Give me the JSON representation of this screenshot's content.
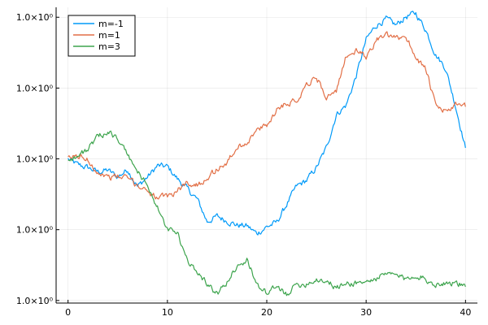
{
  "chart_data": {
    "type": "line",
    "title": "",
    "xlabel": "",
    "ylabel": "",
    "xlim": [
      -1.2,
      41.2
    ],
    "ylim": [
      -0.03,
      3.42
    ],
    "yscale": "log",
    "grid": true,
    "legend_position": "top-left",
    "x_ticks": [
      {
        "value": 0,
        "label": "0"
      },
      {
        "value": 10,
        "label": "10"
      },
      {
        "value": 20,
        "label": "20"
      },
      {
        "value": 30,
        "label": "30"
      },
      {
        "value": 40,
        "label": "40"
      }
    ],
    "y_ticks": [
      {
        "value": 0,
        "label": "1.0×10⁰"
      },
      {
        "value": 0.826,
        "label": "1.0×10⁰"
      },
      {
        "value": 1.652,
        "label": "1.0×10⁰"
      },
      {
        "value": 2.478,
        "label": "1.0×10⁰"
      },
      {
        "value": 3.304,
        "label": "1.0×10⁰"
      }
    ],
    "series": [
      {
        "name": "m=-1",
        "color": "#009AF9",
        "x": [
          0,
          1,
          2,
          3,
          4,
          5,
          6,
          7,
          8,
          9,
          10,
          11,
          12,
          13,
          14,
          15,
          16,
          17,
          18,
          19,
          20,
          21,
          22,
          23,
          24,
          25,
          26,
          27,
          28,
          29,
          30,
          31,
          32,
          33,
          34,
          35,
          36,
          37,
          38,
          39,
          40
        ],
        "y": [
          1.65,
          1.58,
          1.55,
          1.5,
          1.52,
          1.44,
          1.53,
          1.33,
          1.44,
          1.57,
          1.56,
          1.42,
          1.3,
          1.18,
          0.92,
          0.98,
          0.93,
          0.88,
          0.87,
          0.78,
          0.86,
          0.91,
          1.12,
          1.33,
          1.4,
          1.55,
          1.78,
          2.17,
          2.28,
          2.62,
          3.04,
          3.21,
          3.28,
          3.21,
          3.31,
          3.35,
          3.16,
          2.87,
          2.71,
          2.27,
          1.78
        ]
      },
      {
        "name": "m=1",
        "color": "#E26F46",
        "x": [
          0,
          1,
          2,
          3,
          4,
          5,
          6,
          7,
          8,
          9,
          10,
          11,
          12,
          13,
          14,
          15,
          16,
          17,
          18,
          19,
          20,
          21,
          22,
          23,
          24,
          25,
          26,
          27,
          28,
          29,
          30,
          31,
          32,
          33,
          34,
          35,
          36,
          37,
          38,
          39,
          40
        ],
        "y": [
          1.65,
          1.69,
          1.64,
          1.5,
          1.44,
          1.44,
          1.43,
          1.34,
          1.29,
          1.19,
          1.21,
          1.28,
          1.38,
          1.34,
          1.44,
          1.53,
          1.61,
          1.78,
          1.85,
          1.98,
          2.04,
          2.23,
          2.31,
          2.33,
          2.53,
          2.6,
          2.38,
          2.42,
          2.86,
          2.91,
          2.84,
          3.04,
          3.09,
          3.05,
          3.09,
          2.84,
          2.7,
          2.26,
          2.21,
          2.27,
          2.26
        ]
      },
      {
        "name": "m=3",
        "color": "#3DA44D",
        "x": [
          0,
          1,
          2,
          3,
          4,
          5,
          6,
          7,
          8,
          9,
          10,
          11,
          12,
          13,
          14,
          15,
          16,
          17,
          18,
          19,
          20,
          21,
          22,
          23,
          24,
          25,
          26,
          27,
          28,
          29,
          30,
          31,
          32,
          33,
          34,
          35,
          36,
          37,
          38,
          39,
          40
        ],
        "y": [
          1.65,
          1.68,
          1.77,
          1.9,
          1.98,
          1.88,
          1.7,
          1.5,
          1.35,
          1.08,
          0.82,
          0.79,
          0.45,
          0.35,
          0.2,
          0.07,
          0.21,
          0.41,
          0.47,
          0.2,
          0.08,
          0.15,
          0.08,
          0.18,
          0.2,
          0.25,
          0.23,
          0.15,
          0.19,
          0.21,
          0.21,
          0.26,
          0.3,
          0.3,
          0.24,
          0.31,
          0.24,
          0.19,
          0.21,
          0.21,
          0.16
        ]
      }
    ]
  }
}
